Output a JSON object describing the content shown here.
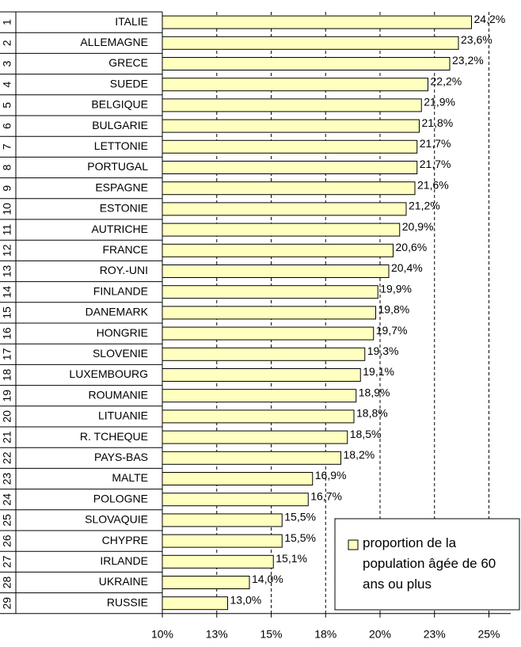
{
  "chart_data": {
    "type": "bar",
    "orientation": "horizontal",
    "ranks": [
      "1",
      "2",
      "3",
      "4",
      "5",
      "6",
      "7",
      "8",
      "9",
      "10",
      "11",
      "12",
      "13",
      "14",
      "15",
      "16",
      "17",
      "18",
      "19",
      "20",
      "21",
      "22",
      "23",
      "24",
      "25",
      "26",
      "27",
      "28",
      "29"
    ],
    "categories": [
      "ITALIE",
      "ALLEMAGNE",
      "GRECE",
      "SUEDE",
      "BELGIQUE",
      "BULGARIE",
      "LETTONIE",
      "PORTUGAL",
      "ESPAGNE",
      "ESTONIE",
      "AUTRICHE",
      "FRANCE",
      "ROY.-UNI",
      "FINLANDE",
      "DANEMARK",
      "HONGRIE",
      "SLOVENIE",
      "LUXEMBOURG",
      "ROUMANIE",
      "LITUANIE",
      "R. TCHEQUE",
      "PAYS-BAS",
      "MALTE",
      "POLOGNE",
      "SLOVAQUIE",
      "CHYPRE",
      "IRLANDE",
      "UKRAINE",
      "RUSSIE"
    ],
    "series": [
      {
        "name": "proportion de la population âgée de 60 ans ou plus",
        "color": "#ffffc0",
        "values": [
          24.2,
          23.6,
          23.2,
          22.2,
          21.9,
          21.8,
          21.7,
          21.7,
          21.6,
          21.2,
          20.9,
          20.6,
          20.4,
          19.9,
          19.8,
          19.7,
          19.3,
          19.1,
          18.9,
          18.8,
          18.5,
          18.2,
          16.9,
          16.7,
          15.5,
          15.5,
          15.1,
          14.0,
          13.0
        ],
        "value_labels": [
          "24,2%",
          "23,6%",
          "23,2%",
          "22,2%",
          "21,9%",
          "21,8%",
          "21,7%",
          "21,7%",
          "21,6%",
          "21,2%",
          "20,9%",
          "20,6%",
          "20,4%",
          "19,9%",
          "19,8%",
          "19,7%",
          "19,3%",
          "19,1%",
          "18,9%",
          "18,8%",
          "18,5%",
          "18,2%",
          "16,9%",
          "16,7%",
          "15,5%",
          "15,5%",
          "15,1%",
          "14,0%",
          "13,0%"
        ]
      }
    ],
    "xlim": [
      10,
      26
    ],
    "xticks": [
      {
        "value": 10,
        "label": "10%"
      },
      {
        "value": 12.5,
        "label": "13%"
      },
      {
        "value": 15,
        "label": "15%"
      },
      {
        "value": 17.5,
        "label": "18%"
      },
      {
        "value": 20,
        "label": "20%"
      },
      {
        "value": 22.5,
        "label": "23%"
      },
      {
        "value": 25,
        "label": "25%"
      }
    ],
    "grid": true,
    "legend": "lower right"
  }
}
